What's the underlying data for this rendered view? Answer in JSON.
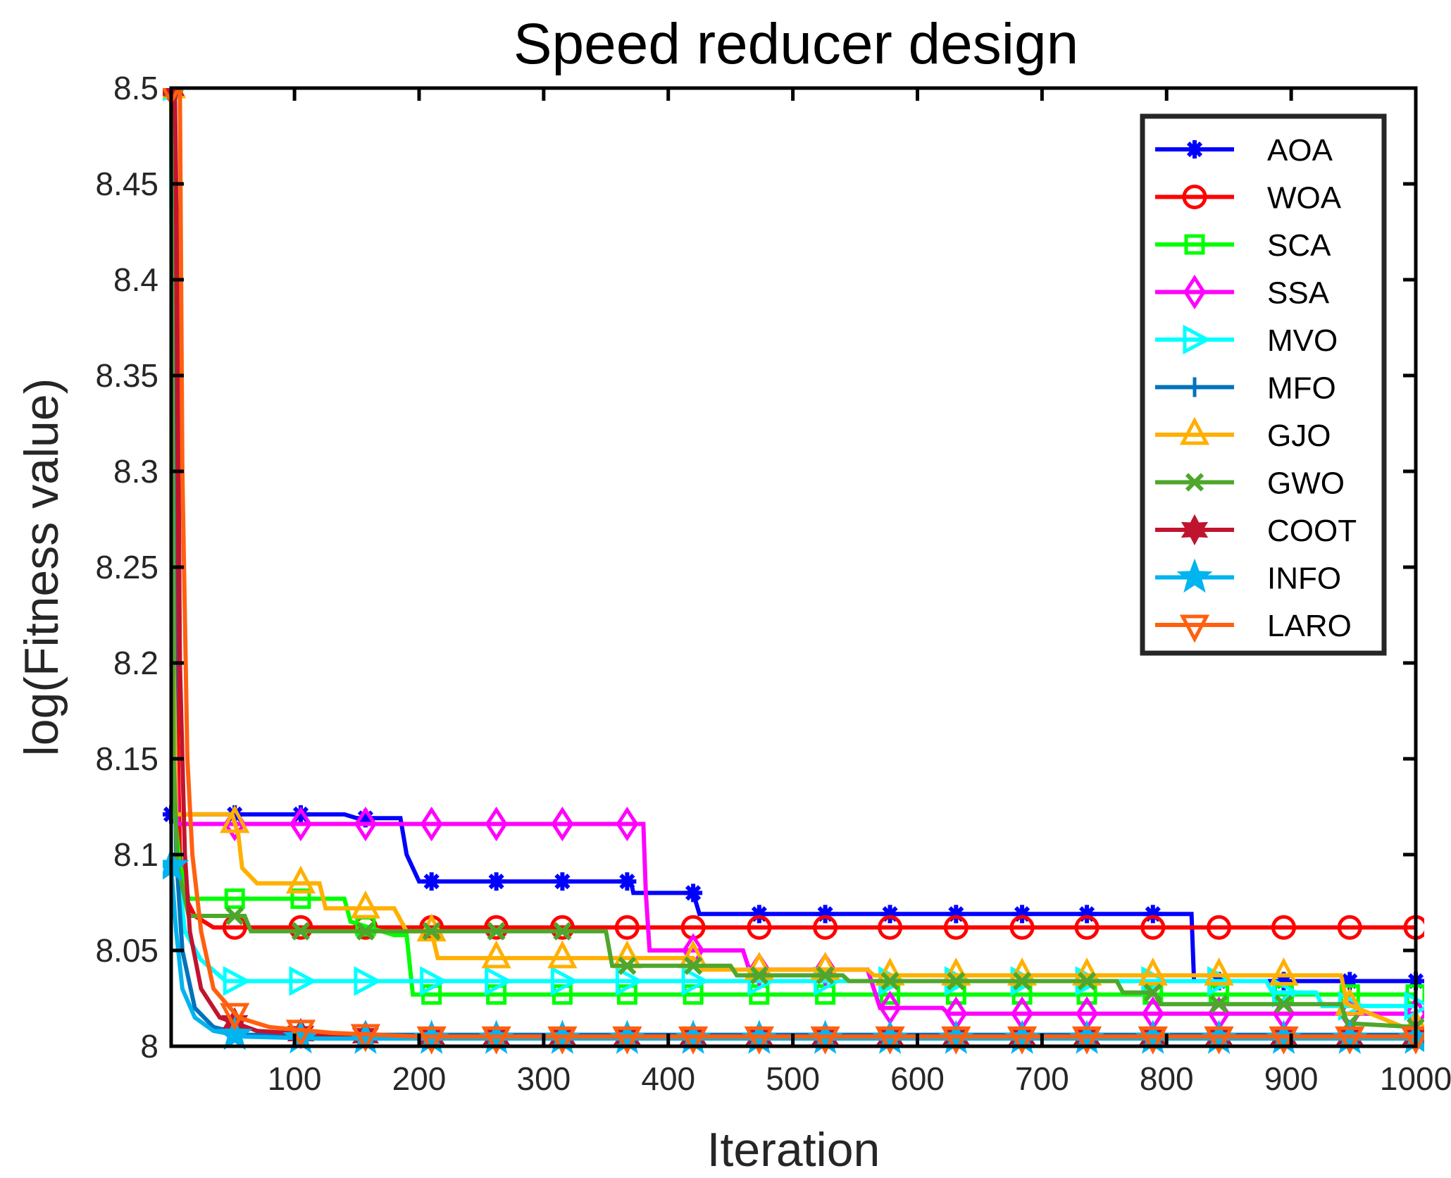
{
  "chart_data": {
    "type": "line",
    "title": "Speed reducer design",
    "xlabel": "Iteration",
    "ylabel": "log(Fitness value)",
    "xlim": [
      1,
      1000
    ],
    "ylim": [
      8,
      8.5
    ],
    "xticks": [
      100,
      200,
      300,
      400,
      500,
      600,
      700,
      800,
      900,
      1000
    ],
    "xtick_labels": [
      "100",
      "200",
      "300",
      "400",
      "500",
      "600",
      "700",
      "800",
      "900",
      "1000"
    ],
    "yticks": [
      8,
      8.05,
      8.1,
      8.15,
      8.2,
      8.25,
      8.3,
      8.35,
      8.4,
      8.45,
      8.5
    ],
    "ytick_labels": [
      "8",
      "8.05",
      "8.1",
      "8.15",
      "8.2",
      "8.25",
      "8.3",
      "8.35",
      "8.4",
      "8.45",
      "8.5"
    ],
    "grid": false,
    "legend_position": "top-right",
    "series": [
      {
        "name": "AOA",
        "color": "#0000ff",
        "marker": "asterisk",
        "markers": "sample",
        "points": [
          [
            1,
            8.121
          ],
          [
            140,
            8.121
          ],
          [
            150,
            8.119
          ],
          [
            185,
            8.119
          ],
          [
            190,
            8.1
          ],
          [
            200,
            8.086
          ],
          [
            370,
            8.086
          ],
          [
            372,
            8.08
          ],
          [
            420,
            8.08
          ],
          [
            425,
            8.069
          ],
          [
            820,
            8.069
          ],
          [
            822,
            8.034
          ],
          [
            1000,
            8.034
          ]
        ]
      },
      {
        "name": "WOA",
        "color": "#ff0000",
        "marker": "circle",
        "markers": "sample",
        "points": [
          [
            1,
            8.5
          ],
          [
            3,
            8.4
          ],
          [
            5,
            8.2
          ],
          [
            8,
            8.1
          ],
          [
            12,
            8.078
          ],
          [
            20,
            8.068
          ],
          [
            35,
            8.062
          ],
          [
            1000,
            8.062
          ]
        ]
      },
      {
        "name": "SCA",
        "color": "#00ff00",
        "marker": "square",
        "markers": "sample",
        "points": [
          [
            1,
            8.5
          ],
          [
            2,
            8.205
          ],
          [
            4,
            8.12
          ],
          [
            8,
            8.095
          ],
          [
            15,
            8.077
          ],
          [
            140,
            8.077
          ],
          [
            145,
            8.065
          ],
          [
            180,
            8.058
          ],
          [
            190,
            8.058
          ],
          [
            195,
            8.027
          ],
          [
            1000,
            8.027
          ]
        ]
      },
      {
        "name": "SSA",
        "color": "#ff00ff",
        "marker": "diamond",
        "markers": "sample",
        "points": [
          [
            1,
            8.5
          ],
          [
            3,
            8.2
          ],
          [
            6,
            8.116
          ],
          [
            380,
            8.116
          ],
          [
            382,
            8.08
          ],
          [
            385,
            8.05
          ],
          [
            460,
            8.05
          ],
          [
            465,
            8.04
          ],
          [
            560,
            8.04
          ],
          [
            565,
            8.03
          ],
          [
            570,
            8.02
          ],
          [
            620,
            8.02
          ],
          [
            625,
            8.017
          ],
          [
            1000,
            8.017
          ]
        ]
      },
      {
        "name": "MVO",
        "color": "#00ffff",
        "marker": "triangle-right",
        "markers": "sample",
        "points": [
          [
            1,
            8.5
          ],
          [
            2,
            8.2
          ],
          [
            5,
            8.1
          ],
          [
            12,
            8.06
          ],
          [
            25,
            8.045
          ],
          [
            45,
            8.034
          ],
          [
            880,
            8.034
          ],
          [
            885,
            8.028
          ],
          [
            920,
            8.028
          ],
          [
            925,
            8.021
          ],
          [
            1000,
            8.021
          ]
        ]
      },
      {
        "name": "MFO",
        "color": "#0072bd",
        "marker": "plus",
        "markers": "sample",
        "points": [
          [
            1,
            8.5
          ],
          [
            5,
            8.1
          ],
          [
            10,
            8.05
          ],
          [
            20,
            8.02
          ],
          [
            35,
            8.01
          ],
          [
            60,
            8.006
          ],
          [
            150,
            8.006
          ],
          [
            1000,
            8.006
          ]
        ]
      },
      {
        "name": "GJO",
        "color": "#ffb000",
        "marker": "triangle-up",
        "markers": "sample",
        "points": [
          [
            1,
            8.5
          ],
          [
            3,
            8.2
          ],
          [
            5,
            8.121
          ],
          [
            50,
            8.121
          ],
          [
            55,
            8.11
          ],
          [
            58,
            8.093
          ],
          [
            70,
            8.085
          ],
          [
            120,
            8.085
          ],
          [
            125,
            8.072
          ],
          [
            180,
            8.072
          ],
          [
            190,
            8.06
          ],
          [
            210,
            8.06
          ],
          [
            215,
            8.046
          ],
          [
            420,
            8.046
          ],
          [
            425,
            8.04
          ],
          [
            560,
            8.04
          ],
          [
            565,
            8.037
          ],
          [
            940,
            8.037
          ],
          [
            945,
            8.022
          ],
          [
            990,
            8.01
          ],
          [
            1000,
            8.01
          ]
        ]
      },
      {
        "name": "GWO",
        "color": "#4ea72c",
        "marker": "cross",
        "markers": "sample",
        "points": [
          [
            1,
            8.5
          ],
          [
            3,
            8.15
          ],
          [
            6,
            8.095
          ],
          [
            15,
            8.068
          ],
          [
            60,
            8.068
          ],
          [
            65,
            8.06
          ],
          [
            350,
            8.06
          ],
          [
            355,
            8.042
          ],
          [
            450,
            8.042
          ],
          [
            455,
            8.037
          ],
          [
            540,
            8.037
          ],
          [
            545,
            8.034
          ],
          [
            760,
            8.034
          ],
          [
            765,
            8.028
          ],
          [
            790,
            8.028
          ],
          [
            795,
            8.022
          ],
          [
            940,
            8.022
          ],
          [
            945,
            8.012
          ],
          [
            1000,
            8.01
          ]
        ]
      },
      {
        "name": "COOT",
        "color": "#c0142e",
        "marker": "hexagram",
        "markers": "sample",
        "points": [
          [
            1,
            8.5
          ],
          [
            4,
            8.5
          ],
          [
            6,
            8.4
          ],
          [
            8,
            8.2
          ],
          [
            12,
            8.1
          ],
          [
            16,
            8.06
          ],
          [
            25,
            8.03
          ],
          [
            40,
            8.015
          ],
          [
            70,
            8.008
          ],
          [
            120,
            8.006
          ],
          [
            200,
            8.005
          ],
          [
            1000,
            8.005
          ]
        ]
      },
      {
        "name": "INFO",
        "color": "#00b4f0",
        "marker": "pentagram",
        "markers": "sample",
        "points": [
          [
            1,
            8.094
          ],
          [
            5,
            8.06
          ],
          [
            10,
            8.03
          ],
          [
            20,
            8.015
          ],
          [
            35,
            8.008
          ],
          [
            60,
            8.005
          ],
          [
            120,
            8.004
          ],
          [
            1000,
            8.004
          ]
        ]
      },
      {
        "name": "LARO",
        "color": "#ff6010",
        "marker": "triangle-down",
        "markers": "sample",
        "points": [
          [
            1,
            8.5
          ],
          [
            8,
            8.5
          ],
          [
            10,
            8.3
          ],
          [
            14,
            8.15
          ],
          [
            18,
            8.1
          ],
          [
            25,
            8.06
          ],
          [
            35,
            8.03
          ],
          [
            55,
            8.015
          ],
          [
            80,
            8.01
          ],
          [
            130,
            8.007
          ],
          [
            200,
            8.005
          ],
          [
            1000,
            8.005
          ]
        ]
      }
    ]
  }
}
